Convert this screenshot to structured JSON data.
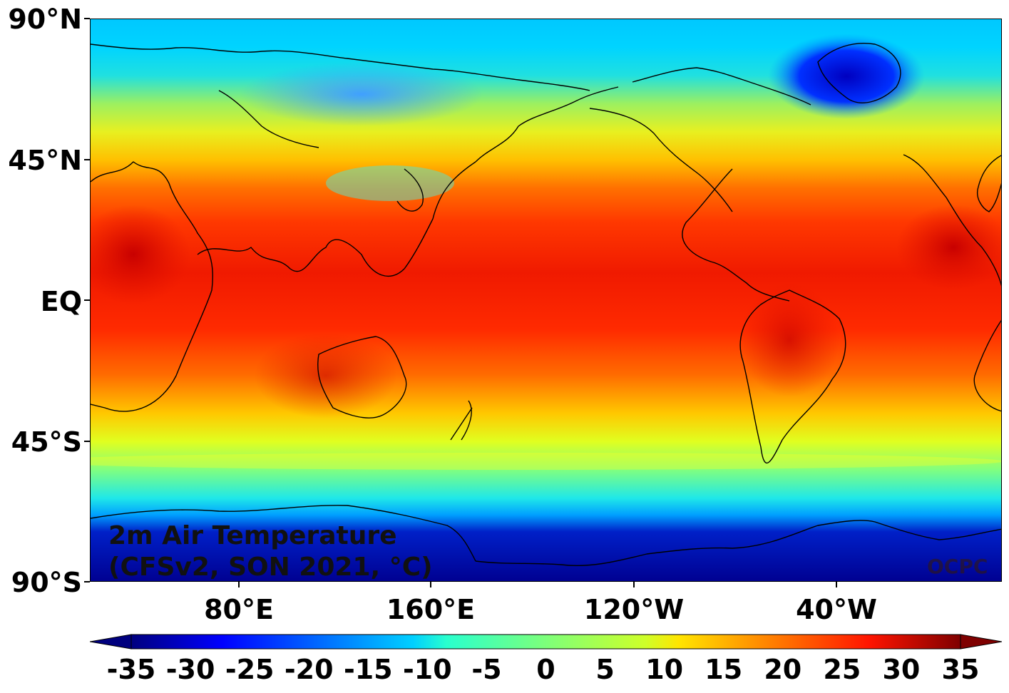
{
  "map": {
    "title_line1": "2m Air Temperature",
    "title_line2": "(CFSv2, SON 2021, °C)",
    "watermark": "OCPC",
    "lat_labels": [
      "90°N",
      "45°N",
      "EQ",
      "45°S",
      "90°S"
    ],
    "lon_labels": [
      "80°E",
      "160°E",
      "120°W",
      "40°W"
    ]
  },
  "colorbar": {
    "ticks": [
      "-35",
      "-30",
      "-25",
      "-20",
      "-15",
      "-10",
      "-5",
      "0",
      "5",
      "10",
      "15",
      "20",
      "25",
      "30",
      "35"
    ],
    "colormap": "jet",
    "range": [
      -37.5,
      37.5
    ],
    "extend": "both"
  }
}
